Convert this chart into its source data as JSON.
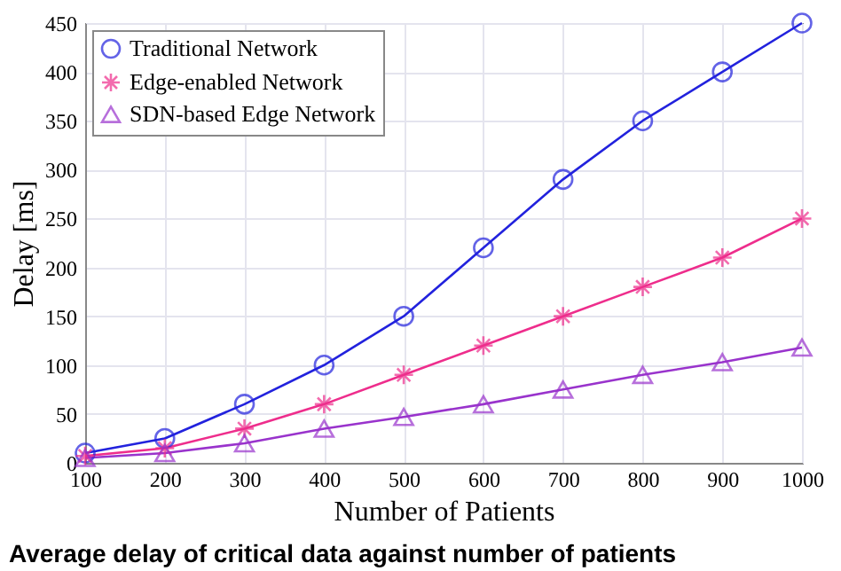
{
  "chart_data": {
    "type": "line",
    "xlabel": "Number of Patients",
    "ylabel": "Delay [ms]",
    "x": [
      100,
      200,
      300,
      400,
      500,
      600,
      700,
      800,
      900,
      1000
    ],
    "series": [
      {
        "name": "Traditional Network",
        "color": "#2222dd",
        "marker": "circle",
        "values": [
          10,
          25,
          60,
          100,
          150,
          220,
          290,
          350,
          400,
          450
        ]
      },
      {
        "name": "Edge-enabled Network",
        "color": "#ee2d8c",
        "marker": "cross",
        "values": [
          7,
          15,
          35,
          60,
          90,
          120,
          150,
          180,
          210,
          250
        ]
      },
      {
        "name": "SDN-based Edge Network",
        "color": "#9933cc",
        "marker": "triangle",
        "values": [
          5,
          10,
          20,
          35,
          47,
          60,
          75,
          90,
          103,
          118
        ]
      }
    ],
    "xlim": [
      100,
      1000
    ],
    "xticks": [
      100,
      200,
      300,
      400,
      500,
      600,
      700,
      800,
      900,
      1000
    ],
    "ylim": [
      0,
      450
    ],
    "yticks": [
      0,
      50,
      100,
      150,
      200,
      250,
      300,
      350,
      400,
      450
    ],
    "grid": true,
    "legend": "top left",
    "line_style": "solid",
    "annotations": [
      "Average delay of critical data against number of patients"
    ]
  }
}
